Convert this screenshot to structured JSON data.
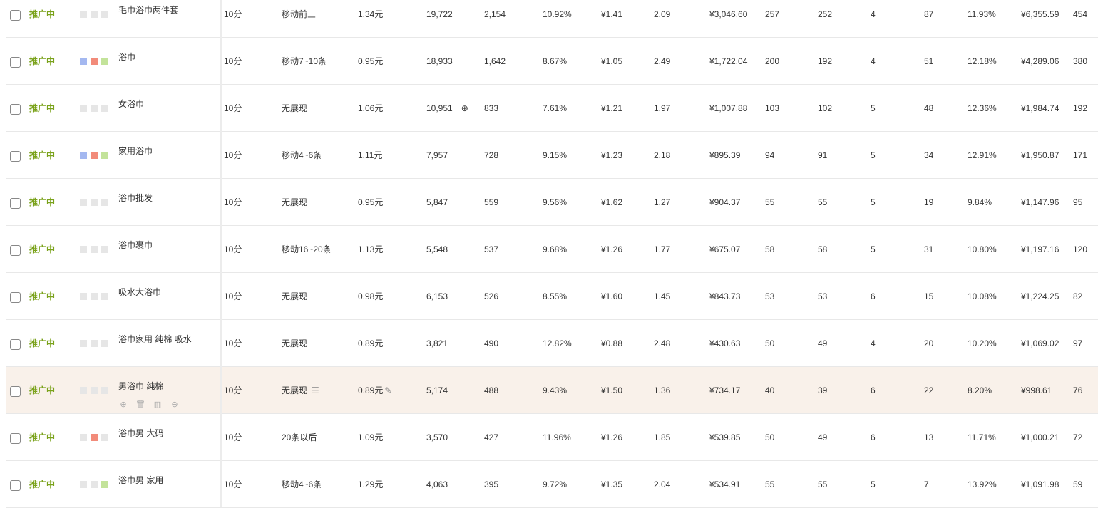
{
  "colors": {
    "status": "#7aa21b",
    "blue": "#a4b8f0",
    "red": "#f28b7a",
    "green": "#c3e39a",
    "grey": "#e6e6e6",
    "highlight": "#f9f1ea"
  },
  "rows": [
    {
      "status": "推广中",
      "flags": [
        "grey",
        "grey",
        "grey"
      ],
      "keyword": "毛巾浴巾两件套",
      "quality": "10分",
      "rank": "移动前三",
      "bid": "1.34元",
      "impressions": "19,722",
      "clicks": "2,154",
      "ctr": "10.92%",
      "cpc": "¥1.41",
      "c9": "2.09",
      "cost": "¥3,046.60",
      "c11": "257",
      "c12": "252",
      "c13": "4",
      "c14": "87",
      "c15": "11.93%",
      "c16": "¥6,355.59",
      "c17": "454"
    },
    {
      "status": "推广中",
      "flags": [
        "blue",
        "red",
        "green"
      ],
      "keyword": "浴巾",
      "quality": "10分",
      "rank": "移动7~10条",
      "bid": "0.95元",
      "impressions": "18,933",
      "clicks": "1,642",
      "ctr": "8.67%",
      "cpc": "¥1.05",
      "c9": "2.49",
      "cost": "¥1,722.04",
      "c11": "200",
      "c12": "192",
      "c13": "4",
      "c14": "51",
      "c15": "12.18%",
      "c16": "¥4,289.06",
      "c17": "380"
    },
    {
      "status": "推广中",
      "flags": [
        "grey",
        "grey",
        "grey"
      ],
      "keyword": "女浴巾",
      "quality": "10分",
      "rank": "无展现",
      "bid": "1.06元",
      "impressions": "10,951",
      "impressions_icon": "download-circle-icon",
      "clicks": "833",
      "ctr": "7.61%",
      "cpc": "¥1.21",
      "c9": "1.97",
      "cost": "¥1,007.88",
      "c11": "103",
      "c12": "102",
      "c13": "5",
      "c14": "48",
      "c15": "12.36%",
      "c16": "¥1,984.74",
      "c17": "192"
    },
    {
      "status": "推广中",
      "flags": [
        "blue",
        "red",
        "green"
      ],
      "keyword": "家用浴巾",
      "quality": "10分",
      "rank": "移动4~6条",
      "bid": "1.11元",
      "impressions": "7,957",
      "clicks": "728",
      "ctr": "9.15%",
      "cpc": "¥1.23",
      "c9": "2.18",
      "cost": "¥895.39",
      "c11": "94",
      "c12": "91",
      "c13": "5",
      "c14": "34",
      "c15": "12.91%",
      "c16": "¥1,950.87",
      "c17": "171"
    },
    {
      "status": "推广中",
      "flags": [
        "grey",
        "grey",
        "grey"
      ],
      "keyword": "浴巾批发",
      "quality": "10分",
      "rank": "无展现",
      "bid": "0.95元",
      "impressions": "5,847",
      "clicks": "559",
      "ctr": "9.56%",
      "cpc": "¥1.62",
      "c9": "1.27",
      "cost": "¥904.37",
      "c11": "55",
      "c12": "55",
      "c13": "5",
      "c14": "19",
      "c15": "9.84%",
      "c16": "¥1,147.96",
      "c17": "95"
    },
    {
      "status": "推广中",
      "flags": [
        "grey",
        "grey",
        "grey"
      ],
      "keyword": "浴巾裹巾",
      "quality": "10分",
      "rank": "移动16~20条",
      "bid": "1.13元",
      "impressions": "5,548",
      "clicks": "537",
      "ctr": "9.68%",
      "cpc": "¥1.26",
      "c9": "1.77",
      "cost": "¥675.07",
      "c11": "58",
      "c12": "58",
      "c13": "5",
      "c14": "31",
      "c15": "10.80%",
      "c16": "¥1,197.16",
      "c17": "120"
    },
    {
      "status": "推广中",
      "flags": [
        "grey",
        "grey",
        "grey"
      ],
      "keyword": "吸水大浴巾",
      "quality": "10分",
      "rank": "无展现",
      "bid": "0.98元",
      "impressions": "6,153",
      "clicks": "526",
      "ctr": "8.55%",
      "cpc": "¥1.60",
      "c9": "1.45",
      "cost": "¥843.73",
      "c11": "53",
      "c12": "53",
      "c13": "6",
      "c14": "15",
      "c15": "10.08%",
      "c16": "¥1,224.25",
      "c17": "82"
    },
    {
      "status": "推广中",
      "flags": [
        "grey",
        "grey",
        "grey"
      ],
      "keyword": "浴巾家用 纯棉 吸水",
      "quality": "10分",
      "rank": "无展现",
      "bid": "0.89元",
      "impressions": "3,821",
      "clicks": "490",
      "ctr": "12.82%",
      "cpc": "¥0.88",
      "c9": "2.48",
      "cost": "¥430.63",
      "c11": "50",
      "c12": "49",
      "c13": "4",
      "c14": "20",
      "c15": "10.20%",
      "c16": "¥1,069.02",
      "c17": "97"
    },
    {
      "status": "推广中",
      "flags": [
        "grey",
        "grey",
        "grey"
      ],
      "keyword": "男浴巾 纯棉",
      "quality": "10分",
      "rank": "无展现",
      "bid": "0.89元",
      "impressions": "5,174",
      "clicks": "488",
      "ctr": "9.43%",
      "cpc": "¥1.50",
      "c9": "1.36",
      "cost": "¥734.17",
      "c11": "40",
      "c12": "39",
      "c13": "6",
      "c14": "22",
      "c15": "8.20%",
      "c16": "¥998.61",
      "c17": "76",
      "hovered": true
    },
    {
      "status": "推广中",
      "flags": [
        "grey",
        "red",
        "grey"
      ],
      "keyword": "浴巾男 大码",
      "quality": "10分",
      "rank": "20条以后",
      "bid": "1.09元",
      "impressions": "3,570",
      "clicks": "427",
      "ctr": "11.96%",
      "cpc": "¥1.26",
      "c9": "1.85",
      "cost": "¥539.85",
      "c11": "50",
      "c12": "49",
      "c13": "6",
      "c14": "13",
      "c15": "11.71%",
      "c16": "¥1,000.21",
      "c17": "72"
    },
    {
      "status": "推广中",
      "flags": [
        "grey",
        "grey",
        "green"
      ],
      "keyword": "浴巾男 家用",
      "quality": "10分",
      "rank": "移动4~6条",
      "bid": "1.29元",
      "impressions": "4,063",
      "clicks": "395",
      "ctr": "9.72%",
      "cpc": "¥1.35",
      "c9": "2.04",
      "cost": "¥534.91",
      "c11": "55",
      "c12": "55",
      "c13": "5",
      "c14": "7",
      "c15": "13.92%",
      "c16": "¥1,091.98",
      "c17": "59"
    }
  ]
}
